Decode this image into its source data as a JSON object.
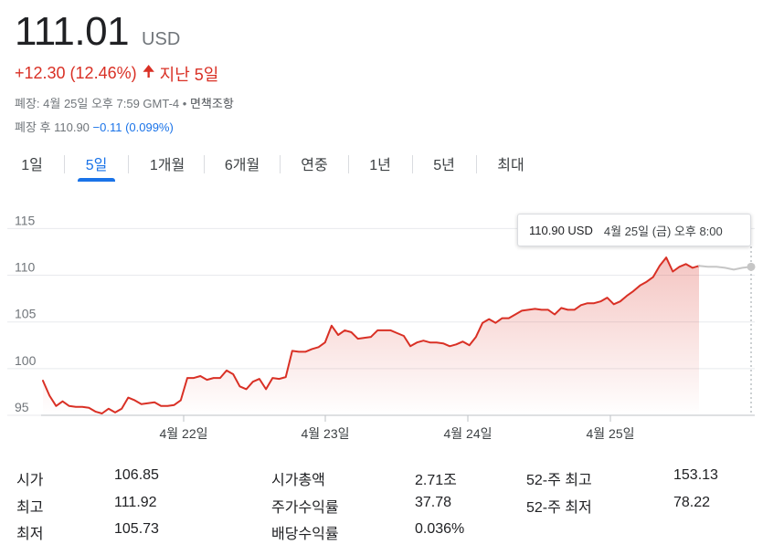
{
  "quote": {
    "price": "111.01",
    "currency": "USD",
    "change": "+12.30 (12.46%)",
    "period": "지난 5일",
    "status_line": "폐장: 4월 25일 오후 7:59 GMT-4 •",
    "disclaimer_link": "면책조항",
    "after_hours_label": "폐장 후 110.90",
    "after_hours_change": "−0.11 (0.099%)"
  },
  "tabs": [
    {
      "label": "1일"
    },
    {
      "label": "5일"
    },
    {
      "label": "1개월"
    },
    {
      "label": "6개월"
    },
    {
      "label": "연중"
    },
    {
      "label": "1년"
    },
    {
      "label": "5년"
    },
    {
      "label": "최대"
    }
  ],
  "active_tab": "5일",
  "tooltip": {
    "price": "110.90 USD",
    "time": "4월 25일 (금) 오후 8:00"
  },
  "colors": {
    "line": "#d93025",
    "after_hours_line": "#c6c6c6",
    "grid": "#e8eaed",
    "accent": "#1a73e8"
  },
  "chart_data": {
    "type": "line",
    "y_ticks": [
      "115",
      "110",
      "105",
      "100",
      "95"
    ],
    "y_tick_values": [
      115,
      110,
      105,
      100,
      95
    ],
    "x_labels": [
      "4월 22일",
      "4월 23일",
      "4월 24일",
      "4월 25일"
    ],
    "ylim": [
      95,
      117
    ],
    "grid": true,
    "series": [
      {
        "values": [
          98.7,
          97.1,
          96.0,
          96.5,
          96.0,
          95.9,
          95.9,
          95.8,
          95.4,
          95.2,
          95.7,
          95.3,
          95.7,
          96.9,
          96.6,
          96.2,
          96.3,
          96.4,
          96.0,
          96.0,
          96.1,
          96.6,
          99.0,
          99.0,
          99.2,
          98.8,
          99.0,
          99.0,
          99.8,
          99.4,
          98.1,
          97.8,
          98.6,
          98.9,
          97.8,
          99.0,
          98.9,
          99.1,
          101.9,
          101.8,
          101.8,
          102.1,
          102.3,
          102.8,
          104.6,
          103.6,
          104.1,
          103.9,
          103.2,
          103.3,
          103.4,
          104.1,
          104.1,
          104.1,
          103.8,
          103.5,
          102.4,
          102.8,
          103.0,
          102.8,
          102.8,
          102.7,
          102.4,
          102.6,
          102.9,
          102.5,
          103.4,
          104.9,
          105.3,
          104.9,
          105.4,
          105.4,
          105.8,
          106.2,
          106.3,
          106.4,
          106.3,
          106.3,
          105.8,
          106.5,
          106.3,
          106.3,
          106.8,
          107.0,
          107.0,
          107.2,
          107.6,
          106.9,
          107.2,
          107.8,
          108.3,
          108.9,
          109.3,
          109.8,
          111.0,
          111.9,
          110.4,
          110.9,
          111.2,
          110.8,
          111.0
        ],
        "after_hours": [
          111.0,
          110.9,
          110.9,
          110.8,
          110.6,
          110.8,
          110.9
        ]
      }
    ]
  },
  "stats": [
    {
      "label": "시가",
      "value": "106.85"
    },
    {
      "label": "최고",
      "value": "111.92"
    },
    {
      "label": "최저",
      "value": "105.73"
    },
    {
      "label": "시가총액",
      "value": "2.71조"
    },
    {
      "label": "주가수익률",
      "value": "37.78"
    },
    {
      "label": "배당수익률",
      "value": "0.036%"
    },
    {
      "label": "52-주 최고",
      "value": "153.13"
    },
    {
      "label": "52-주 최저",
      "value": "78.22"
    }
  ]
}
